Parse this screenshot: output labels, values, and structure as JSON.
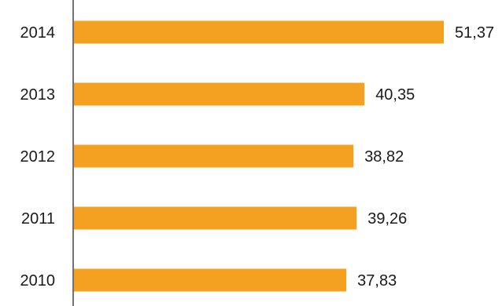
{
  "chart_data": {
    "type": "bar",
    "orientation": "horizontal",
    "categories": [
      "2014",
      "2013",
      "2012",
      "2011",
      "2010"
    ],
    "values": [
      51.37,
      40.35,
      38.82,
      39.26,
      37.83
    ],
    "value_labels": [
      "51,37",
      "40,35",
      "38,82",
      "39,26",
      "37,83"
    ],
    "bar_color": "#F4A020",
    "title": "",
    "xlabel": "",
    "ylabel": "",
    "grid": false,
    "legend": "none"
  }
}
